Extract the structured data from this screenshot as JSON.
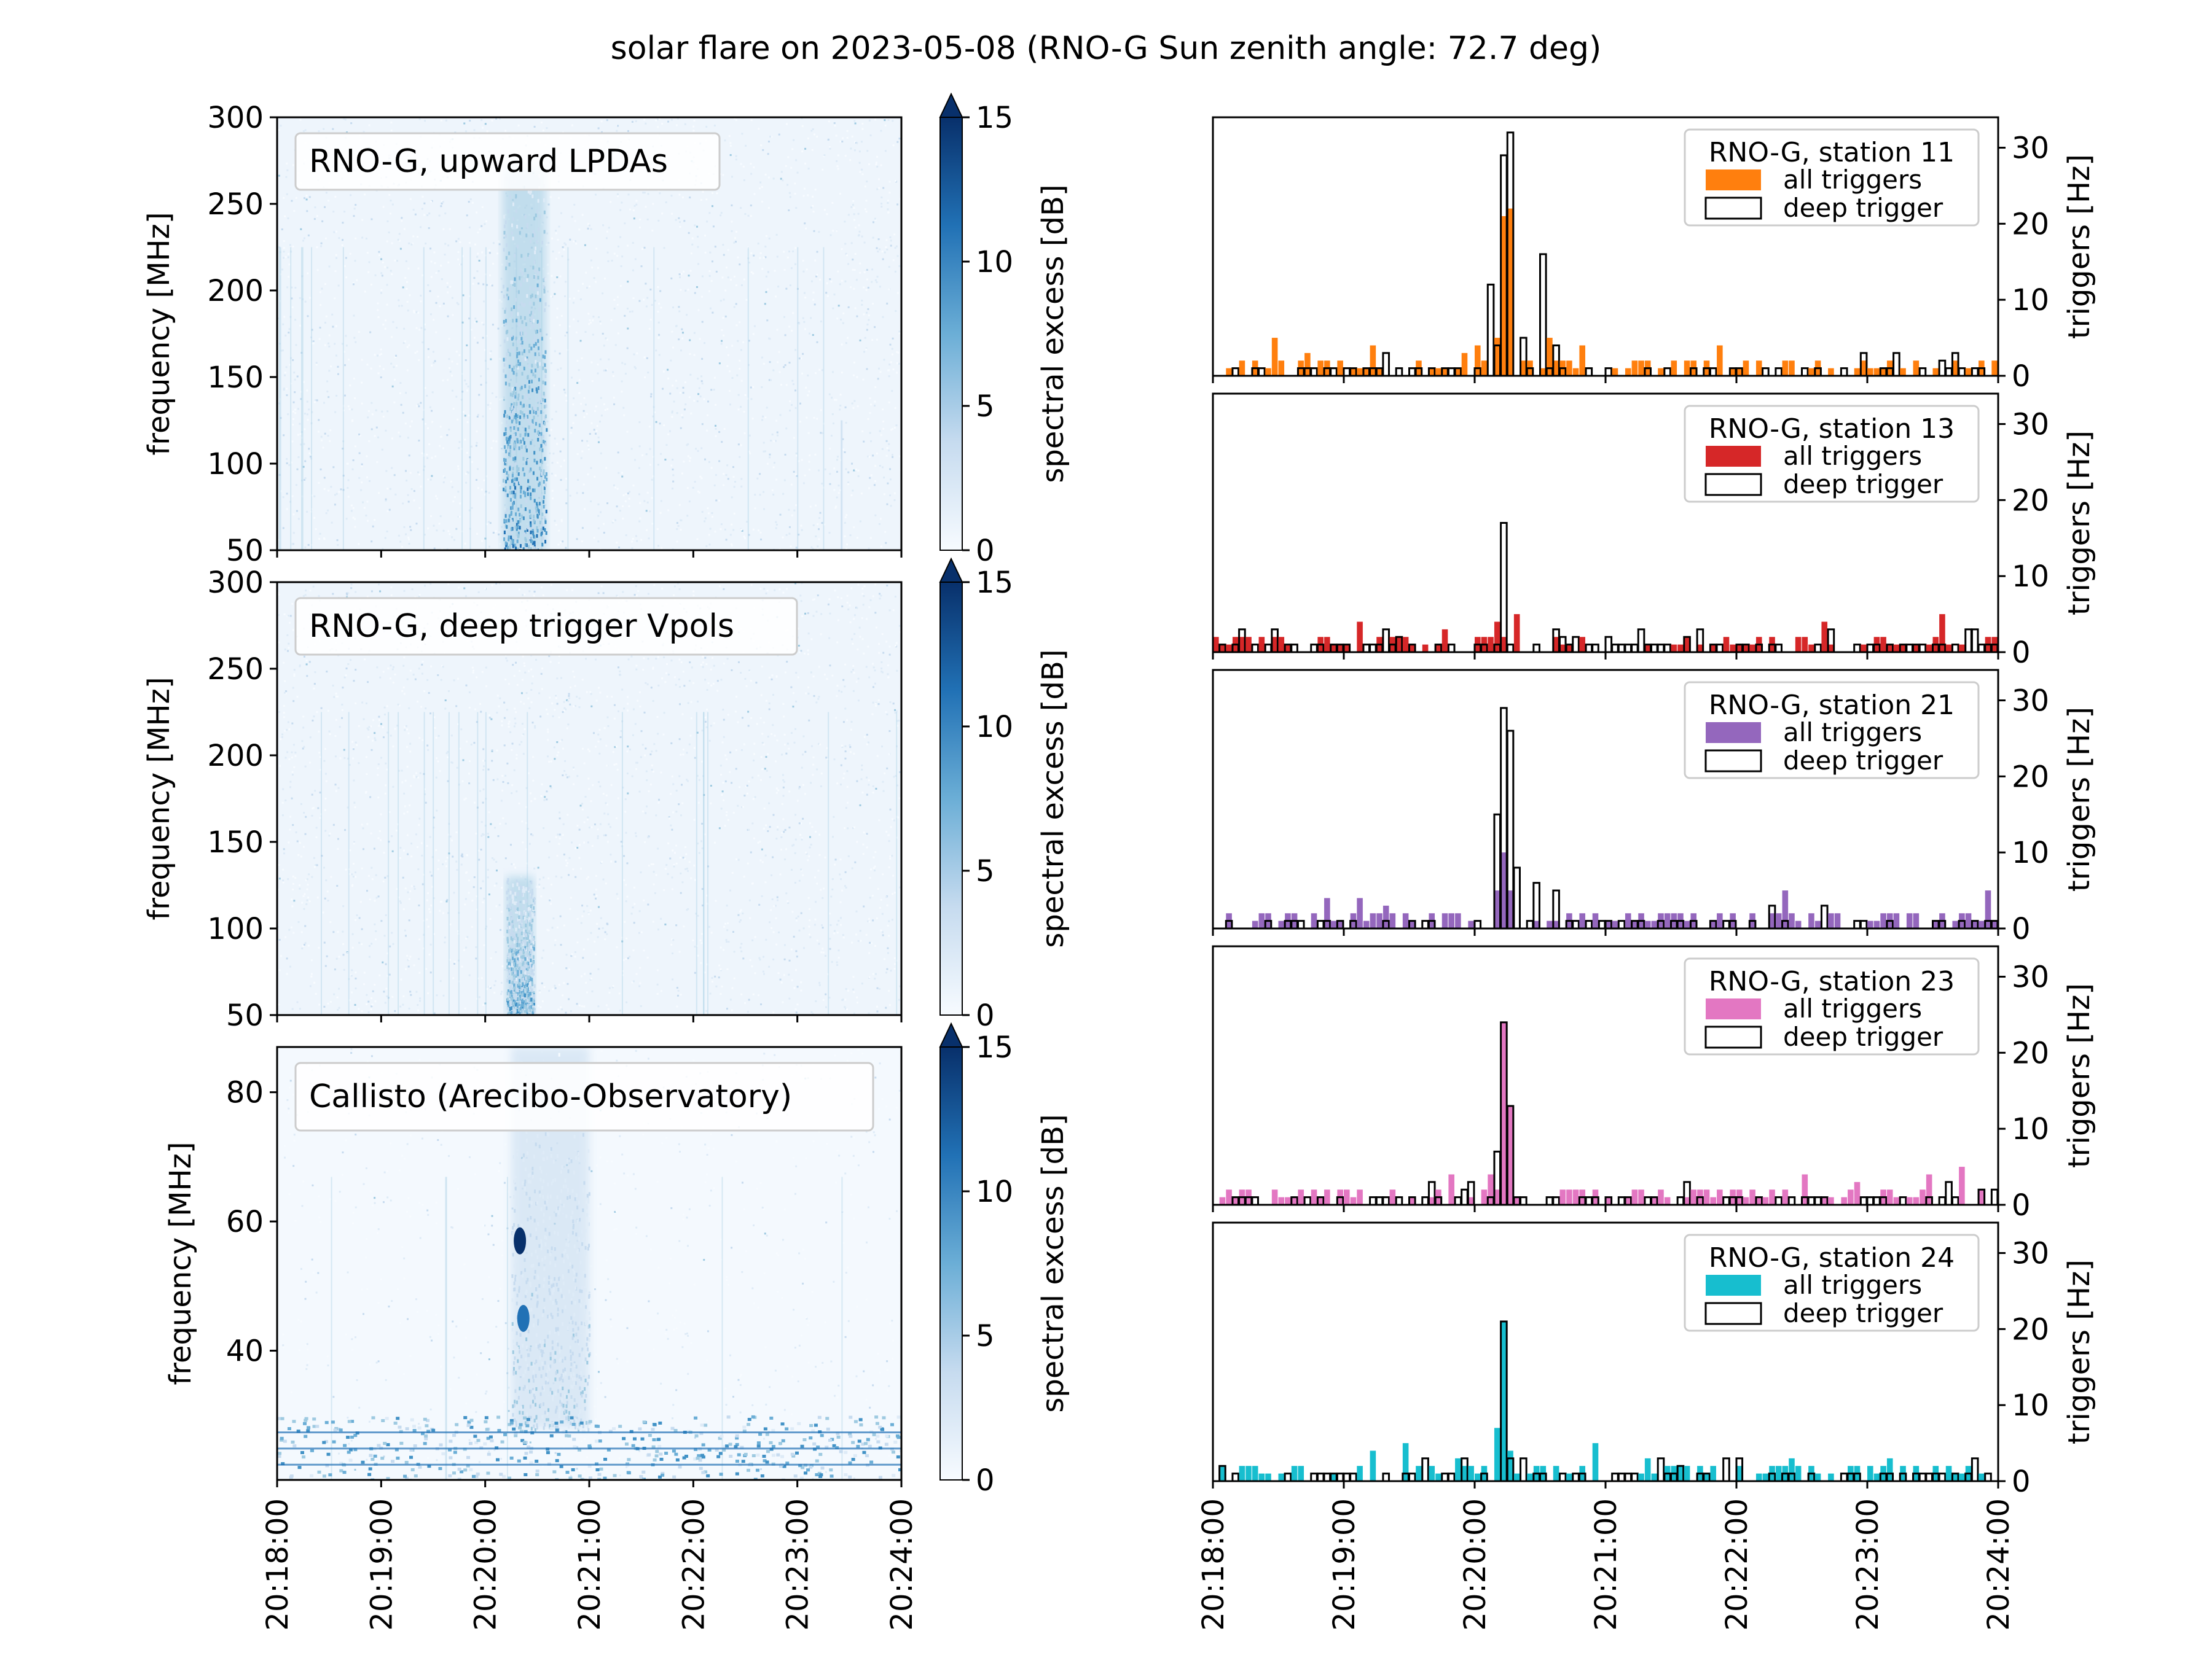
{
  "title": "solar flare on 2023-05-08 (RNO-G Sun zenith angle: 72.7 deg)",
  "time_ticks": [
    "20:18:00",
    "20:19:00",
    "20:20:00",
    "20:21:00",
    "20:22:00",
    "20:23:00",
    "20:24:00"
  ],
  "colorbar": {
    "label": "spectral excess [dB]",
    "ticks": [
      "0",
      "5",
      "10",
      "15"
    ],
    "range": [
      0,
      15
    ],
    "extend": "max"
  },
  "chart_data": [
    {
      "type": "heatmap",
      "legend": "RNO-G, upward LPDAs",
      "ylabel": "frequency [MHz]",
      "yticks": [
        "50",
        "100",
        "150",
        "200",
        "250",
        "300"
      ],
      "ylim": [
        50,
        300
      ],
      "xlim": [
        "20:18:00",
        "20:24:00"
      ],
      "colormap": "Blues",
      "features": [
        {
          "time_start": "20:20:10",
          "time_end": "20:20:35",
          "freq_low": 50,
          "freq_high": 270,
          "level_db": 12,
          "note": "flare burst"
        },
        {
          "time": "20:23:25",
          "freq_low": 50,
          "freq_high": 125,
          "level_db": 4
        }
      ]
    },
    {
      "type": "heatmap",
      "legend": "RNO-G, deep trigger Vpols",
      "ylabel": "frequency [MHz]",
      "yticks": [
        "50",
        "100",
        "150",
        "200",
        "250",
        "300"
      ],
      "ylim": [
        50,
        300
      ],
      "xlim": [
        "20:18:00",
        "20:24:00"
      ],
      "colormap": "Blues",
      "features": [
        {
          "time_start": "20:20:12",
          "time_end": "20:20:28",
          "freq_low": 50,
          "freq_high": 130,
          "level_db": 10,
          "note": "flare burst"
        }
      ]
    },
    {
      "type": "heatmap",
      "legend": "Callisto (Arecibo-Observatory)",
      "ylabel": "frequency [MHz]",
      "yticks": [
        "40",
        "60",
        "80"
      ],
      "ylim": [
        20,
        87
      ],
      "xlim": [
        "20:18:00",
        "20:24:00"
      ],
      "colormap": "Blues",
      "features": [
        {
          "time_start": "20:20:15",
          "time_end": "20:21:00",
          "freq_low": 28,
          "freq_high": 87,
          "level_db": 6,
          "note": "flare burst"
        },
        {
          "time": "20:20:20",
          "freq": 57,
          "level_db": 15
        },
        {
          "time": "20:20:22",
          "freq": 45,
          "level_db": 12
        },
        {
          "time_start": "20:18:00",
          "time_end": "20:24:00",
          "freq_low": 20,
          "freq_high": 30,
          "level_db": 8,
          "note": "low-frequency RFI band"
        }
      ]
    },
    {
      "type": "bar",
      "station": "RNO-G, station 11",
      "ylabel": "triggers [Hz]",
      "yticks": [
        "0",
        "10",
        "20",
        "30"
      ],
      "ylim": [
        0,
        34
      ],
      "xlim": [
        "20:18:00",
        "20:24:00"
      ],
      "bin_seconds": 3,
      "series": [
        {
          "name": "all triggers",
          "color": "#ff7f0e",
          "baseline": 1,
          "peaks": [
            {
              "t": "20:20:10",
              "v": 5
            },
            {
              "t": "20:20:13",
              "v": 21
            },
            {
              "t": "20:20:16",
              "v": 22
            },
            {
              "t": "20:20:34",
              "v": 5
            },
            {
              "t": "20:21:50",
              "v": 4
            }
          ]
        },
        {
          "name": "deep trigger",
          "color": "#000000",
          "peaks": [
            {
              "t": "20:20:05",
              "v": 12
            },
            {
              "t": "20:20:10",
              "v": 4
            },
            {
              "t": "20:20:13",
              "v": 29
            },
            {
              "t": "20:20:16",
              "v": 32
            },
            {
              "t": "20:20:20",
              "v": 5
            },
            {
              "t": "20:20:31",
              "v": 16
            },
            {
              "t": "20:20:37",
              "v": 4
            },
            {
              "t": "20:23:40",
              "v": 3
            }
          ]
        }
      ]
    },
    {
      "type": "bar",
      "station": "RNO-G, station 13",
      "ylabel": "triggers [Hz]",
      "yticks": [
        "0",
        "10",
        "20",
        "30"
      ],
      "ylim": [
        0,
        34
      ],
      "xlim": [
        "20:18:00",
        "20:24:00"
      ],
      "bin_seconds": 3,
      "series": [
        {
          "name": "all triggers",
          "color": "#d62728",
          "baseline": 1,
          "peaks": [
            {
              "t": "20:20:13",
              "v": 2
            }
          ]
        },
        {
          "name": "deep trigger",
          "color": "#000000",
          "peaks": [
            {
              "t": "20:18:13",
              "v": 3
            },
            {
              "t": "20:18:28",
              "v": 3
            },
            {
              "t": "20:19:25",
              "v": 2
            },
            {
              "t": "20:20:13",
              "v": 17
            },
            {
              "t": "20:20:45",
              "v": 2
            },
            {
              "t": "20:21:35",
              "v": 2
            },
            {
              "t": "20:23:45",
              "v": 3
            }
          ]
        }
      ]
    },
    {
      "type": "bar",
      "station": "RNO-G, station 21",
      "ylabel": "triggers [Hz]",
      "yticks": [
        "0",
        "10",
        "20",
        "30"
      ],
      "ylim": [
        0,
        34
      ],
      "xlim": [
        "20:18:00",
        "20:24:00"
      ],
      "bin_seconds": 3,
      "series": [
        {
          "name": "all triggers",
          "color": "#9467bd",
          "baseline": 1,
          "peaks": [
            {
              "t": "20:20:10",
              "v": 5
            },
            {
              "t": "20:20:13",
              "v": 10
            },
            {
              "t": "20:20:16",
              "v": 5
            }
          ]
        },
        {
          "name": "deep trigger",
          "color": "#000000",
          "peaks": [
            {
              "t": "20:20:10",
              "v": 15
            },
            {
              "t": "20:20:13",
              "v": 29
            },
            {
              "t": "20:20:16",
              "v": 26
            },
            {
              "t": "20:20:19",
              "v": 8
            },
            {
              "t": "20:20:28",
              "v": 6
            },
            {
              "t": "20:20:36",
              "v": 5
            },
            {
              "t": "20:22:40",
              "v": 3
            }
          ]
        }
      ]
    },
    {
      "type": "bar",
      "station": "RNO-G, station 23",
      "ylabel": "triggers [Hz]",
      "yticks": [
        "0",
        "10",
        "20",
        "30"
      ],
      "ylim": [
        0,
        34
      ],
      "xlim": [
        "20:18:00",
        "20:24:00"
      ],
      "bin_seconds": 3,
      "series": [
        {
          "name": "all triggers",
          "color": "#e377c2",
          "baseline": 1,
          "peaks": [
            {
              "t": "20:20:07",
              "v": 4
            },
            {
              "t": "20:20:13",
              "v": 24
            },
            {
              "t": "20:20:16",
              "v": 13
            },
            {
              "t": "20:22:55",
              "v": 3
            }
          ]
        },
        {
          "name": "deep trigger",
          "color": "#000000",
          "peaks": [
            {
              "t": "20:20:10",
              "v": 7
            },
            {
              "t": "20:20:13",
              "v": 24
            },
            {
              "t": "20:20:16",
              "v": 13
            },
            {
              "t": "20:19:40",
              "v": 3
            },
            {
              "t": "20:21:35",
              "v": 3
            }
          ]
        }
      ]
    },
    {
      "type": "bar",
      "station": "RNO-G, station 24",
      "ylabel": "triggers [Hz]",
      "yticks": [
        "0",
        "10",
        "20",
        "30"
      ],
      "ylim": [
        0,
        34
      ],
      "xlim": [
        "20:18:00",
        "20:24:00"
      ],
      "bin_seconds": 3,
      "series": [
        {
          "name": "all triggers",
          "color": "#17becf",
          "baseline": 1,
          "peaks": [
            {
              "t": "20:20:10",
              "v": 7
            },
            {
              "t": "20:20:13",
              "v": 21
            },
            {
              "t": "20:20:16",
              "v": 4
            }
          ]
        },
        {
          "name": "deep trigger",
          "color": "#000000",
          "peaks": [
            {
              "t": "20:20:13",
              "v": 21
            },
            {
              "t": "20:20:16",
              "v": 3
            },
            {
              "t": "20:20:22",
              "v": 3
            },
            {
              "t": "20:21:25",
              "v": 3
            },
            {
              "t": "20:22:00",
              "v": 3
            }
          ]
        }
      ]
    }
  ]
}
